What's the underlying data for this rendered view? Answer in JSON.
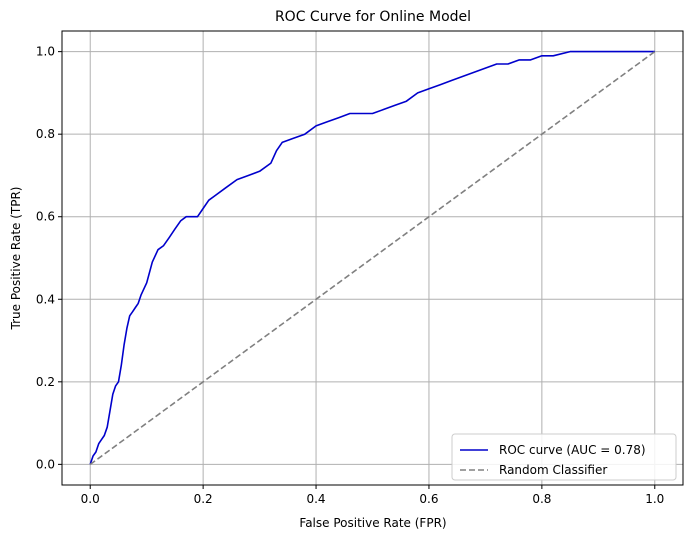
{
  "chart_data": {
    "type": "line",
    "title": "ROC Curve for Online Model",
    "xlabel": "False Positive Rate (FPR)",
    "ylabel": "True Positive Rate (TPR)",
    "xlim": [
      -0.05,
      1.05
    ],
    "ylim": [
      -0.05,
      1.05
    ],
    "xticks": [
      0.0,
      0.2,
      0.4,
      0.6,
      0.8,
      1.0
    ],
    "yticks": [
      0.0,
      0.2,
      0.4,
      0.6,
      0.8,
      1.0
    ],
    "xtick_labels": [
      "0.0",
      "0.2",
      "0.4",
      "0.6",
      "0.8",
      "1.0"
    ],
    "ytick_labels": [
      "0.0",
      "0.2",
      "0.4",
      "0.6",
      "0.8",
      "1.0"
    ],
    "grid": true,
    "legend_position": "lower-right",
    "series": [
      {
        "name": "ROC curve (AUC = 0.78)",
        "color": "#0000cc",
        "style": "solid",
        "x": [
          0.0,
          0.005,
          0.01,
          0.015,
          0.02,
          0.025,
          0.03,
          0.035,
          0.04,
          0.045,
          0.05,
          0.055,
          0.06,
          0.065,
          0.07,
          0.075,
          0.08,
          0.085,
          0.09,
          0.1,
          0.11,
          0.12,
          0.13,
          0.14,
          0.15,
          0.16,
          0.17,
          0.18,
          0.19,
          0.2,
          0.21,
          0.22,
          0.24,
          0.26,
          0.28,
          0.3,
          0.32,
          0.33,
          0.34,
          0.36,
          0.38,
          0.4,
          0.42,
          0.44,
          0.46,
          0.48,
          0.5,
          0.52,
          0.54,
          0.56,
          0.58,
          0.6,
          0.62,
          0.64,
          0.66,
          0.68,
          0.7,
          0.72,
          0.74,
          0.76,
          0.78,
          0.8,
          0.82,
          0.85,
          0.9,
          1.0
        ],
        "y": [
          0.0,
          0.02,
          0.03,
          0.05,
          0.06,
          0.07,
          0.09,
          0.13,
          0.17,
          0.19,
          0.2,
          0.24,
          0.29,
          0.33,
          0.36,
          0.37,
          0.38,
          0.39,
          0.41,
          0.44,
          0.49,
          0.52,
          0.53,
          0.55,
          0.57,
          0.59,
          0.6,
          0.6,
          0.6,
          0.62,
          0.64,
          0.65,
          0.67,
          0.69,
          0.7,
          0.71,
          0.73,
          0.76,
          0.78,
          0.79,
          0.8,
          0.82,
          0.83,
          0.84,
          0.85,
          0.85,
          0.85,
          0.86,
          0.87,
          0.88,
          0.9,
          0.91,
          0.92,
          0.93,
          0.94,
          0.95,
          0.96,
          0.97,
          0.97,
          0.98,
          0.98,
          0.99,
          0.99,
          1.0,
          1.0,
          1.0
        ]
      },
      {
        "name": "Random Classifier",
        "color": "#808080",
        "style": "dashed",
        "x": [
          0.0,
          1.0
        ],
        "y": [
          0.0,
          1.0
        ]
      }
    ]
  }
}
